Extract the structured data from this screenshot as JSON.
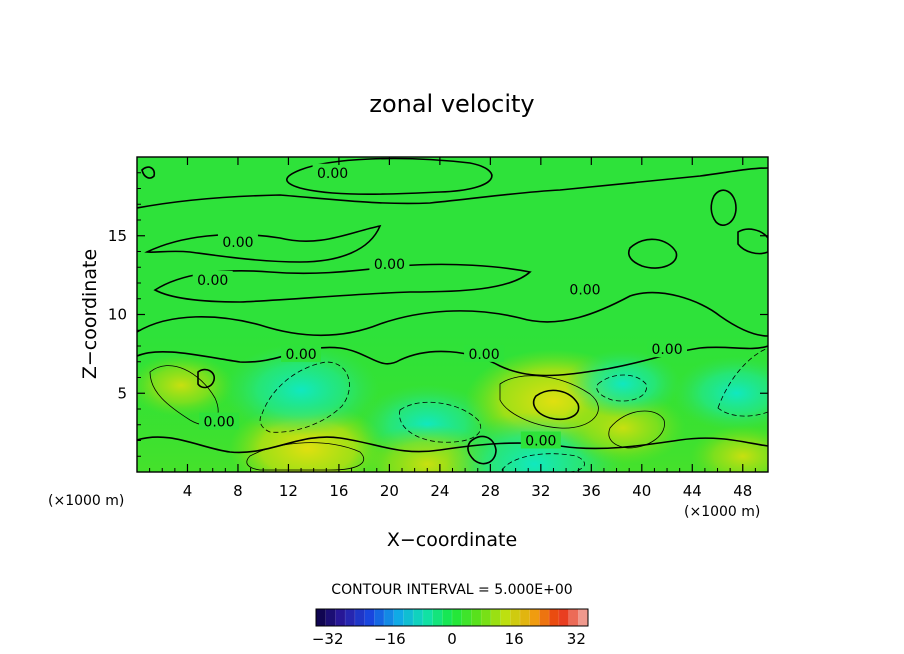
{
  "chart_data": {
    "type": "contour",
    "title": "zonal velocity",
    "xlabel": "X−coordinate",
    "ylabel": "Z−coordinate",
    "x_unit": "(×1000 m)",
    "xlim": [
      0,
      50
    ],
    "ylim": [
      0,
      20
    ],
    "x_ticks": [
      "4",
      "8",
      "12",
      "16",
      "20",
      "24",
      "28",
      "32",
      "36",
      "40",
      "44",
      "48"
    ],
    "y_ticks": [
      "5",
      "10",
      "15"
    ],
    "contour_interval_text": "CONTOUR INTERVAL = 5.000E+00",
    "contour_label": "0.00",
    "zero_contour_label_positions": [
      [
        15.5,
        19.0
      ],
      [
        8.0,
        14.6
      ],
      [
        6.0,
        12.2
      ],
      [
        20.0,
        13.2
      ],
      [
        35.5,
        11.6
      ],
      [
        13.0,
        7.5
      ],
      [
        27.5,
        7.5
      ],
      [
        42.0,
        7.8
      ],
      [
        6.5,
        3.2
      ],
      [
        32.0,
        2.0
      ]
    ],
    "color_scale": {
      "min": -35,
      "max": 35,
      "step": 2.5,
      "tick_labels": [
        "−32",
        "−16",
        "0",
        "16",
        "32"
      ],
      "tick_values": [
        -32,
        -16,
        0,
        16,
        32
      ],
      "stops": [
        "#0a0040",
        "#2a1aa0",
        "#1848e0",
        "#10a8e8",
        "#10e0b0",
        "#18e840",
        "#60e018",
        "#c0e010",
        "#f0a010",
        "#e83010",
        "#f0b0a8"
      ]
    },
    "features": [
      {
        "type": "positive",
        "x": 3.5,
        "z": 5.5,
        "level": 5
      },
      {
        "type": "positive",
        "x": 13.5,
        "z": 1.5,
        "level": 10
      },
      {
        "type": "negative",
        "x": 13.0,
        "z": 5.2,
        "level": -10
      },
      {
        "type": "negative",
        "x": 23.0,
        "z": 3.0,
        "level": -8
      },
      {
        "type": "positive",
        "x": 23.0,
        "z": 0.5,
        "level": 8
      },
      {
        "type": "positive",
        "x": 33.0,
        "z": 4.5,
        "level": 12
      },
      {
        "type": "negative",
        "x": 31.5,
        "z": 0.5,
        "level": -12
      },
      {
        "type": "positive",
        "x": 38.5,
        "z": 2.8,
        "level": 7
      },
      {
        "type": "negative",
        "x": 38.5,
        "z": 5.6,
        "level": -6
      },
      {
        "type": "negative",
        "x": 47.5,
        "z": 5.0,
        "level": -7
      },
      {
        "type": "positive",
        "x": 48.0,
        "z": 1.0,
        "level": 5
      }
    ]
  }
}
